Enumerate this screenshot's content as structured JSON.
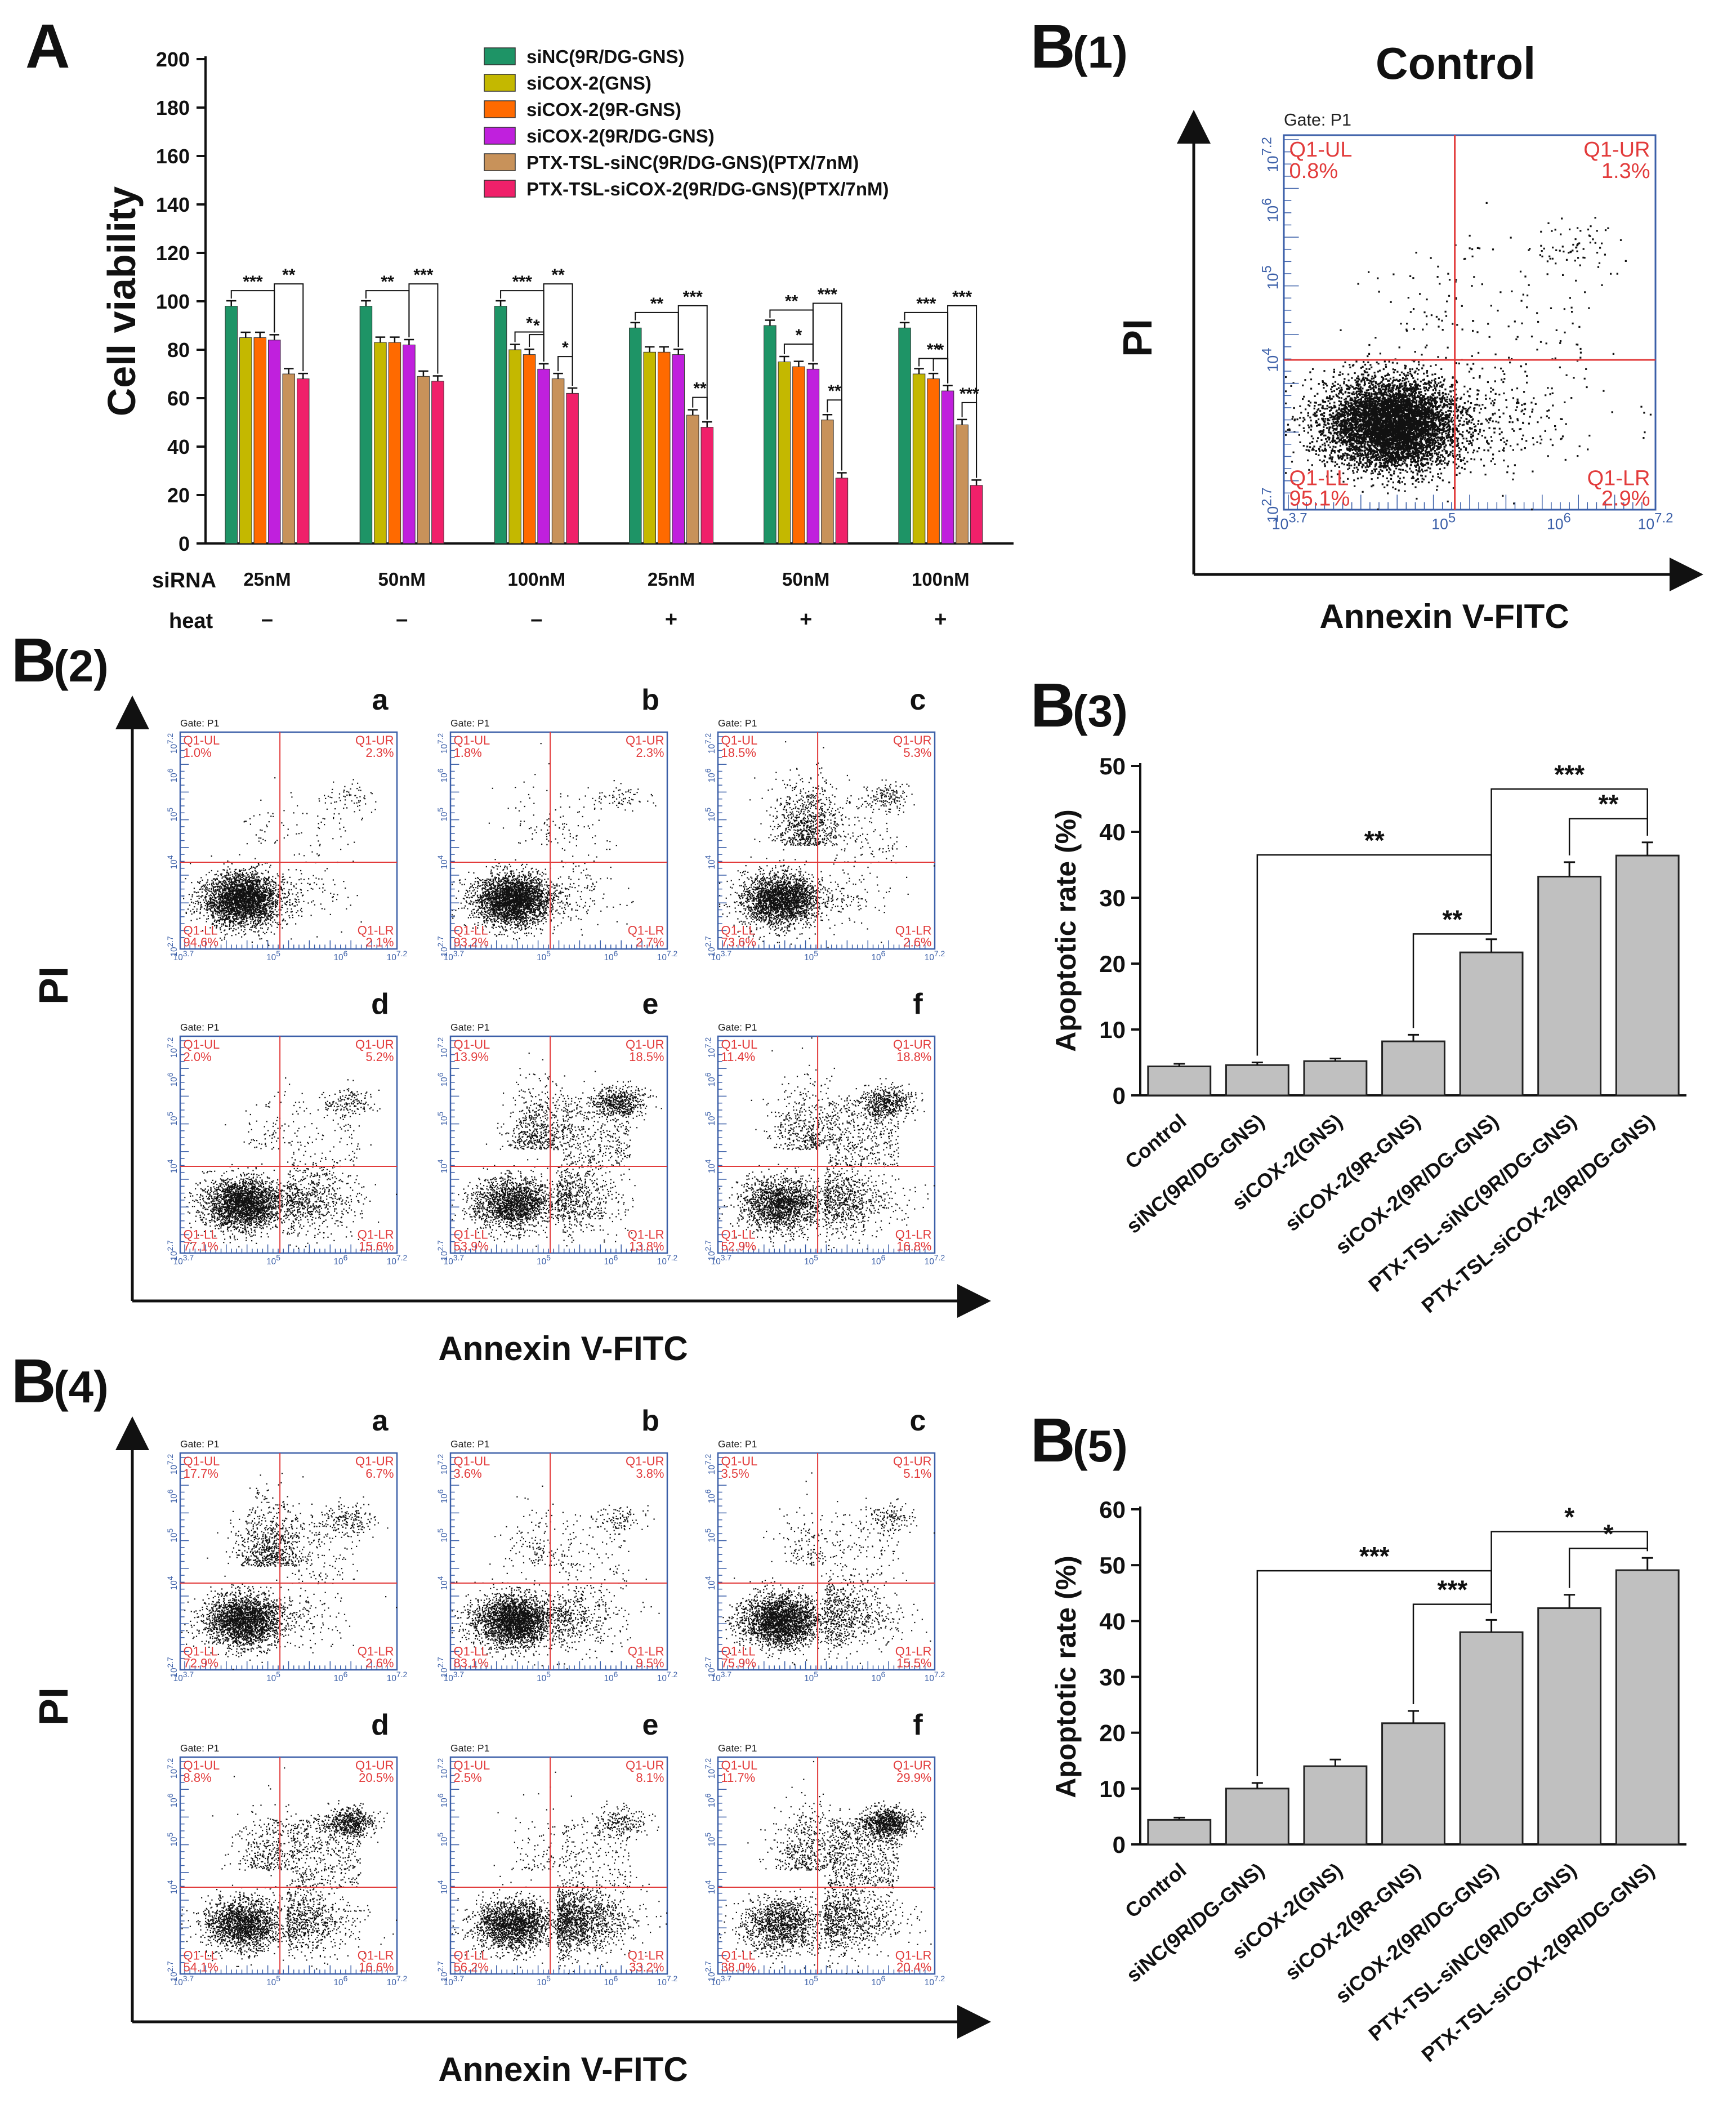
{
  "chart_data": [
    {
      "id": "A",
      "type": "bar",
      "panel_label": "A",
      "ylabel": "Cell viability",
      "ylim": [
        0,
        200
      ],
      "yticks": [
        "0",
        "20",
        "40",
        "60",
        "80",
        "100",
        "120",
        "140",
        "160",
        "180",
        "200"
      ],
      "row_labels": {
        "siRNA": "siRNA",
        "heat": "heat"
      },
      "groups": [
        {
          "siRNA": "25nM",
          "heat": "–"
        },
        {
          "siRNA": "50nM",
          "heat": "–"
        },
        {
          "siRNA": "100nM",
          "heat": "–"
        },
        {
          "siRNA": "25nM",
          "heat": "+"
        },
        {
          "siRNA": "50nM",
          "heat": "+"
        },
        {
          "siRNA": "100nM",
          "heat": "+"
        }
      ],
      "series": [
        {
          "name": "siNC(9R/DG-GNS)",
          "color": "#1e9466",
          "values": [
            98,
            98,
            98,
            89,
            90,
            89
          ]
        },
        {
          "name": "siCOX-2(GNS)",
          "color": "#c4b800",
          "values": [
            85,
            83,
            80,
            79,
            75,
            70
          ]
        },
        {
          "name": "siCOX-2(9R-GNS)",
          "color": "#ff6a00",
          "values": [
            85,
            83,
            78,
            79,
            73,
            68
          ]
        },
        {
          "name": "siCOX-2(9R/DG-GNS)",
          "color": "#c020dd",
          "values": [
            84,
            82,
            72,
            78,
            72,
            63
          ]
        },
        {
          "name": "PTX-TSL-siNC(9R/DG-GNS)(PTX/7nM)",
          "color": "#c8925a",
          "values": [
            70,
            69,
            68,
            53,
            51,
            49
          ]
        },
        {
          "name": "PTX-TSL-siCOX-2(9R/DG-GNS)(PTX/7nM)",
          "color": "#f0206a",
          "values": [
            68,
            67,
            62,
            48,
            27,
            24
          ]
        }
      ],
      "significance": [
        {
          "group": 0,
          "from": 0,
          "to": 3,
          "label": "***"
        },
        {
          "group": 0,
          "from": 3,
          "to": 5,
          "label": "**"
        },
        {
          "group": 1,
          "from": 0,
          "to": 3,
          "label": "**"
        },
        {
          "group": 1,
          "from": 3,
          "to": 5,
          "label": "***"
        },
        {
          "group": 2,
          "from": 0,
          "to": 3,
          "label": "***"
        },
        {
          "group": 2,
          "from": 3,
          "to": 5,
          "label": "**"
        },
        {
          "group": 2,
          "from": 1,
          "to": 3,
          "label": "*"
        },
        {
          "group": 2,
          "from": 2,
          "to": 3,
          "label": "*"
        },
        {
          "group": 2,
          "from": 4,
          "to": 5,
          "label": "*"
        },
        {
          "group": 3,
          "from": 0,
          "to": 3,
          "label": "**"
        },
        {
          "group": 3,
          "from": 3,
          "to": 5,
          "label": "***"
        },
        {
          "group": 3,
          "from": 4,
          "to": 5,
          "label": "**"
        },
        {
          "group": 4,
          "from": 0,
          "to": 3,
          "label": "**"
        },
        {
          "group": 4,
          "from": 3,
          "to": 5,
          "label": "***"
        },
        {
          "group": 4,
          "from": 1,
          "to": 3,
          "label": "*"
        },
        {
          "group": 4,
          "from": 4,
          "to": 5,
          "label": "**"
        },
        {
          "group": 5,
          "from": 0,
          "to": 3,
          "label": "***"
        },
        {
          "group": 5,
          "from": 1,
          "to": 3,
          "label": "**"
        },
        {
          "group": 5,
          "from": 3,
          "to": 5,
          "label": "***"
        },
        {
          "group": 5,
          "from": 2,
          "to": 3,
          "label": "*"
        },
        {
          "group": 5,
          "from": 4,
          "to": 5,
          "label": "***"
        }
      ]
    },
    {
      "id": "B1",
      "type": "scatter",
      "panel_label": "B(1)",
      "title": "Control",
      "xlabel": "Annexin V-FITC",
      "ylabel": "PI",
      "gate": "Gate: P1",
      "quadrants": {
        "UL": "Q1-UL",
        "UR": "Q1-UR",
        "LL": "Q1-LL",
        "LR": "Q1-LR"
      },
      "values": {
        "UL": "0.8%",
        "UR": "1.3%",
        "LL": "95.1%",
        "LR": "2.9%"
      },
      "xticks": [
        "3.7",
        "5",
        "6",
        "7.2"
      ],
      "yticks": [
        "2.7",
        "4",
        "5",
        "6",
        "7.2"
      ],
      "tick_base": "10"
    },
    {
      "id": "B2",
      "type": "scatter",
      "panel_label": "B(2)",
      "xlabel": "Annexin V-FITC",
      "ylabel": "PI",
      "gate": "Gate: P1",
      "quadrant_names": {
        "UL": "Q1-UL",
        "UR": "Q1-UR",
        "LL": "Q1-LL",
        "LR": "Q1-LR"
      },
      "xticks": [
        "3.7",
        "5",
        "6",
        "7.2"
      ],
      "yticks": [
        "2.7",
        "4",
        "5",
        "6",
        "7.2"
      ],
      "tick_base": "10",
      "plots": [
        {
          "label": "a",
          "UL": "1.0%",
          "UR": "2.3%",
          "LL": "94.6%",
          "LR": "2.1%"
        },
        {
          "label": "b",
          "UL": "1.8%",
          "UR": "2.3%",
          "LL": "93.2%",
          "LR": "2.7%"
        },
        {
          "label": "c",
          "UL": "18.5%",
          "UR": "5.3%",
          "LL": "73.6%",
          "LR": "2.6%"
        },
        {
          "label": "d",
          "UL": "2.0%",
          "UR": "5.2%",
          "LL": "77.1%",
          "LR": "15.6%"
        },
        {
          "label": "e",
          "UL": "13.9%",
          "UR": "18.5%",
          "LL": "53.9%",
          "LR": "13.8%"
        },
        {
          "label": "f",
          "UL": "11.4%",
          "UR": "18.8%",
          "LL": "52.9%",
          "LR": "16.8%"
        }
      ]
    },
    {
      "id": "B3",
      "type": "bar",
      "panel_label": "B(3)",
      "ylabel": "Apoptotic rate (%)",
      "ylim": [
        0,
        50
      ],
      "yticks": [
        "0",
        "10",
        "20",
        "30",
        "40",
        "50"
      ],
      "categories": [
        "Control",
        "siNC(9R/DG-GNS)",
        "siCOX-2(GNS)",
        "siCOX-2(9R-GNS)",
        "siCOX-2(9R/DG-GNS)",
        "PTX-TSL-siNC(9R/DG-GNS)",
        "PTX-TSL-siCOX-2(9R/DG-GNS)"
      ],
      "values": [
        4.4,
        4.6,
        5.2,
        8.2,
        21.7,
        33.2,
        36.4
      ],
      "errors": [
        0.4,
        0.4,
        0.4,
        1.0,
        2.0,
        2.2,
        2.0
      ],
      "bar_color": "#c0c0c0",
      "significance": [
        {
          "from": 1,
          "to": 4,
          "label": "**",
          "y": 36.5
        },
        {
          "from": 3,
          "to": 4,
          "label": "**",
          "y": 24.5
        },
        {
          "from": 4,
          "to": 6,
          "label": "***",
          "y": 46.5
        },
        {
          "from": 5,
          "to": 6,
          "label": "**",
          "y": 42.0
        }
      ]
    },
    {
      "id": "B4",
      "type": "scatter",
      "panel_label": "B(4)",
      "xlabel": "Annexin V-FITC",
      "ylabel": "PI",
      "gate": "Gate: P1",
      "quadrant_names": {
        "UL": "Q1-UL",
        "UR": "Q1-UR",
        "LL": "Q1-LL",
        "LR": "Q1-LR"
      },
      "xticks": [
        "3.7",
        "5",
        "6",
        "7.2"
      ],
      "yticks": [
        "2.7",
        "4",
        "5",
        "6",
        "7.2"
      ],
      "tick_base": "10",
      "plots": [
        {
          "label": "a",
          "UL": "17.7%",
          "UR": "6.7%",
          "LL": "72.9%",
          "LR": "2.6%"
        },
        {
          "label": "b",
          "UL": "3.6%",
          "UR": "3.8%",
          "LL": "83.1%",
          "LR": "9.5%"
        },
        {
          "label": "c",
          "UL": "3.5%",
          "UR": "5.1%",
          "LL": "75.9%",
          "LR": "15.5%"
        },
        {
          "label": "d",
          "UL": "8.8%",
          "UR": "20.5%",
          "LL": "54.1%",
          "LR": "16.6%"
        },
        {
          "label": "e",
          "UL": "2.5%",
          "UR": "8.1%",
          "LL": "56.2%",
          "LR": "33.2%"
        },
        {
          "label": "f",
          "UL": "11.7%",
          "UR": "29.9%",
          "LL": "38.0%",
          "LR": "20.4%"
        }
      ]
    },
    {
      "id": "B5",
      "type": "bar",
      "panel_label": "B(5)",
      "ylabel": "Apoptotic rate (%)",
      "ylim": [
        0,
        60
      ],
      "yticks": [
        "0",
        "10",
        "20",
        "30",
        "40",
        "50",
        "60"
      ],
      "categories": [
        "Control",
        "siNC(9R/DG-GNS)",
        "siCOX-2(GNS)",
        "siCOX-2(9R-GNS)",
        "siCOX-2(9R/DG-GNS)",
        "PTX-TSL-siNC(9R/DG-GNS)",
        "PTX-TSL-siCOX-2(9R/DG-GNS)"
      ],
      "values": [
        4.4,
        10.0,
        14.0,
        21.7,
        38.0,
        42.3,
        49.1
      ],
      "errors": [
        0.4,
        1.0,
        1.2,
        2.2,
        2.2,
        2.4,
        2.2
      ],
      "bar_color": "#c0c0c0",
      "significance": [
        {
          "from": 1,
          "to": 4,
          "label": "***",
          "y": 49.0
        },
        {
          "from": 3,
          "to": 4,
          "label": "***",
          "y": 43.0
        },
        {
          "from": 4,
          "to": 6,
          "label": "*",
          "y": 56.0
        },
        {
          "from": 5,
          "to": 6,
          "label": "*",
          "y": 53.0
        }
      ]
    }
  ]
}
